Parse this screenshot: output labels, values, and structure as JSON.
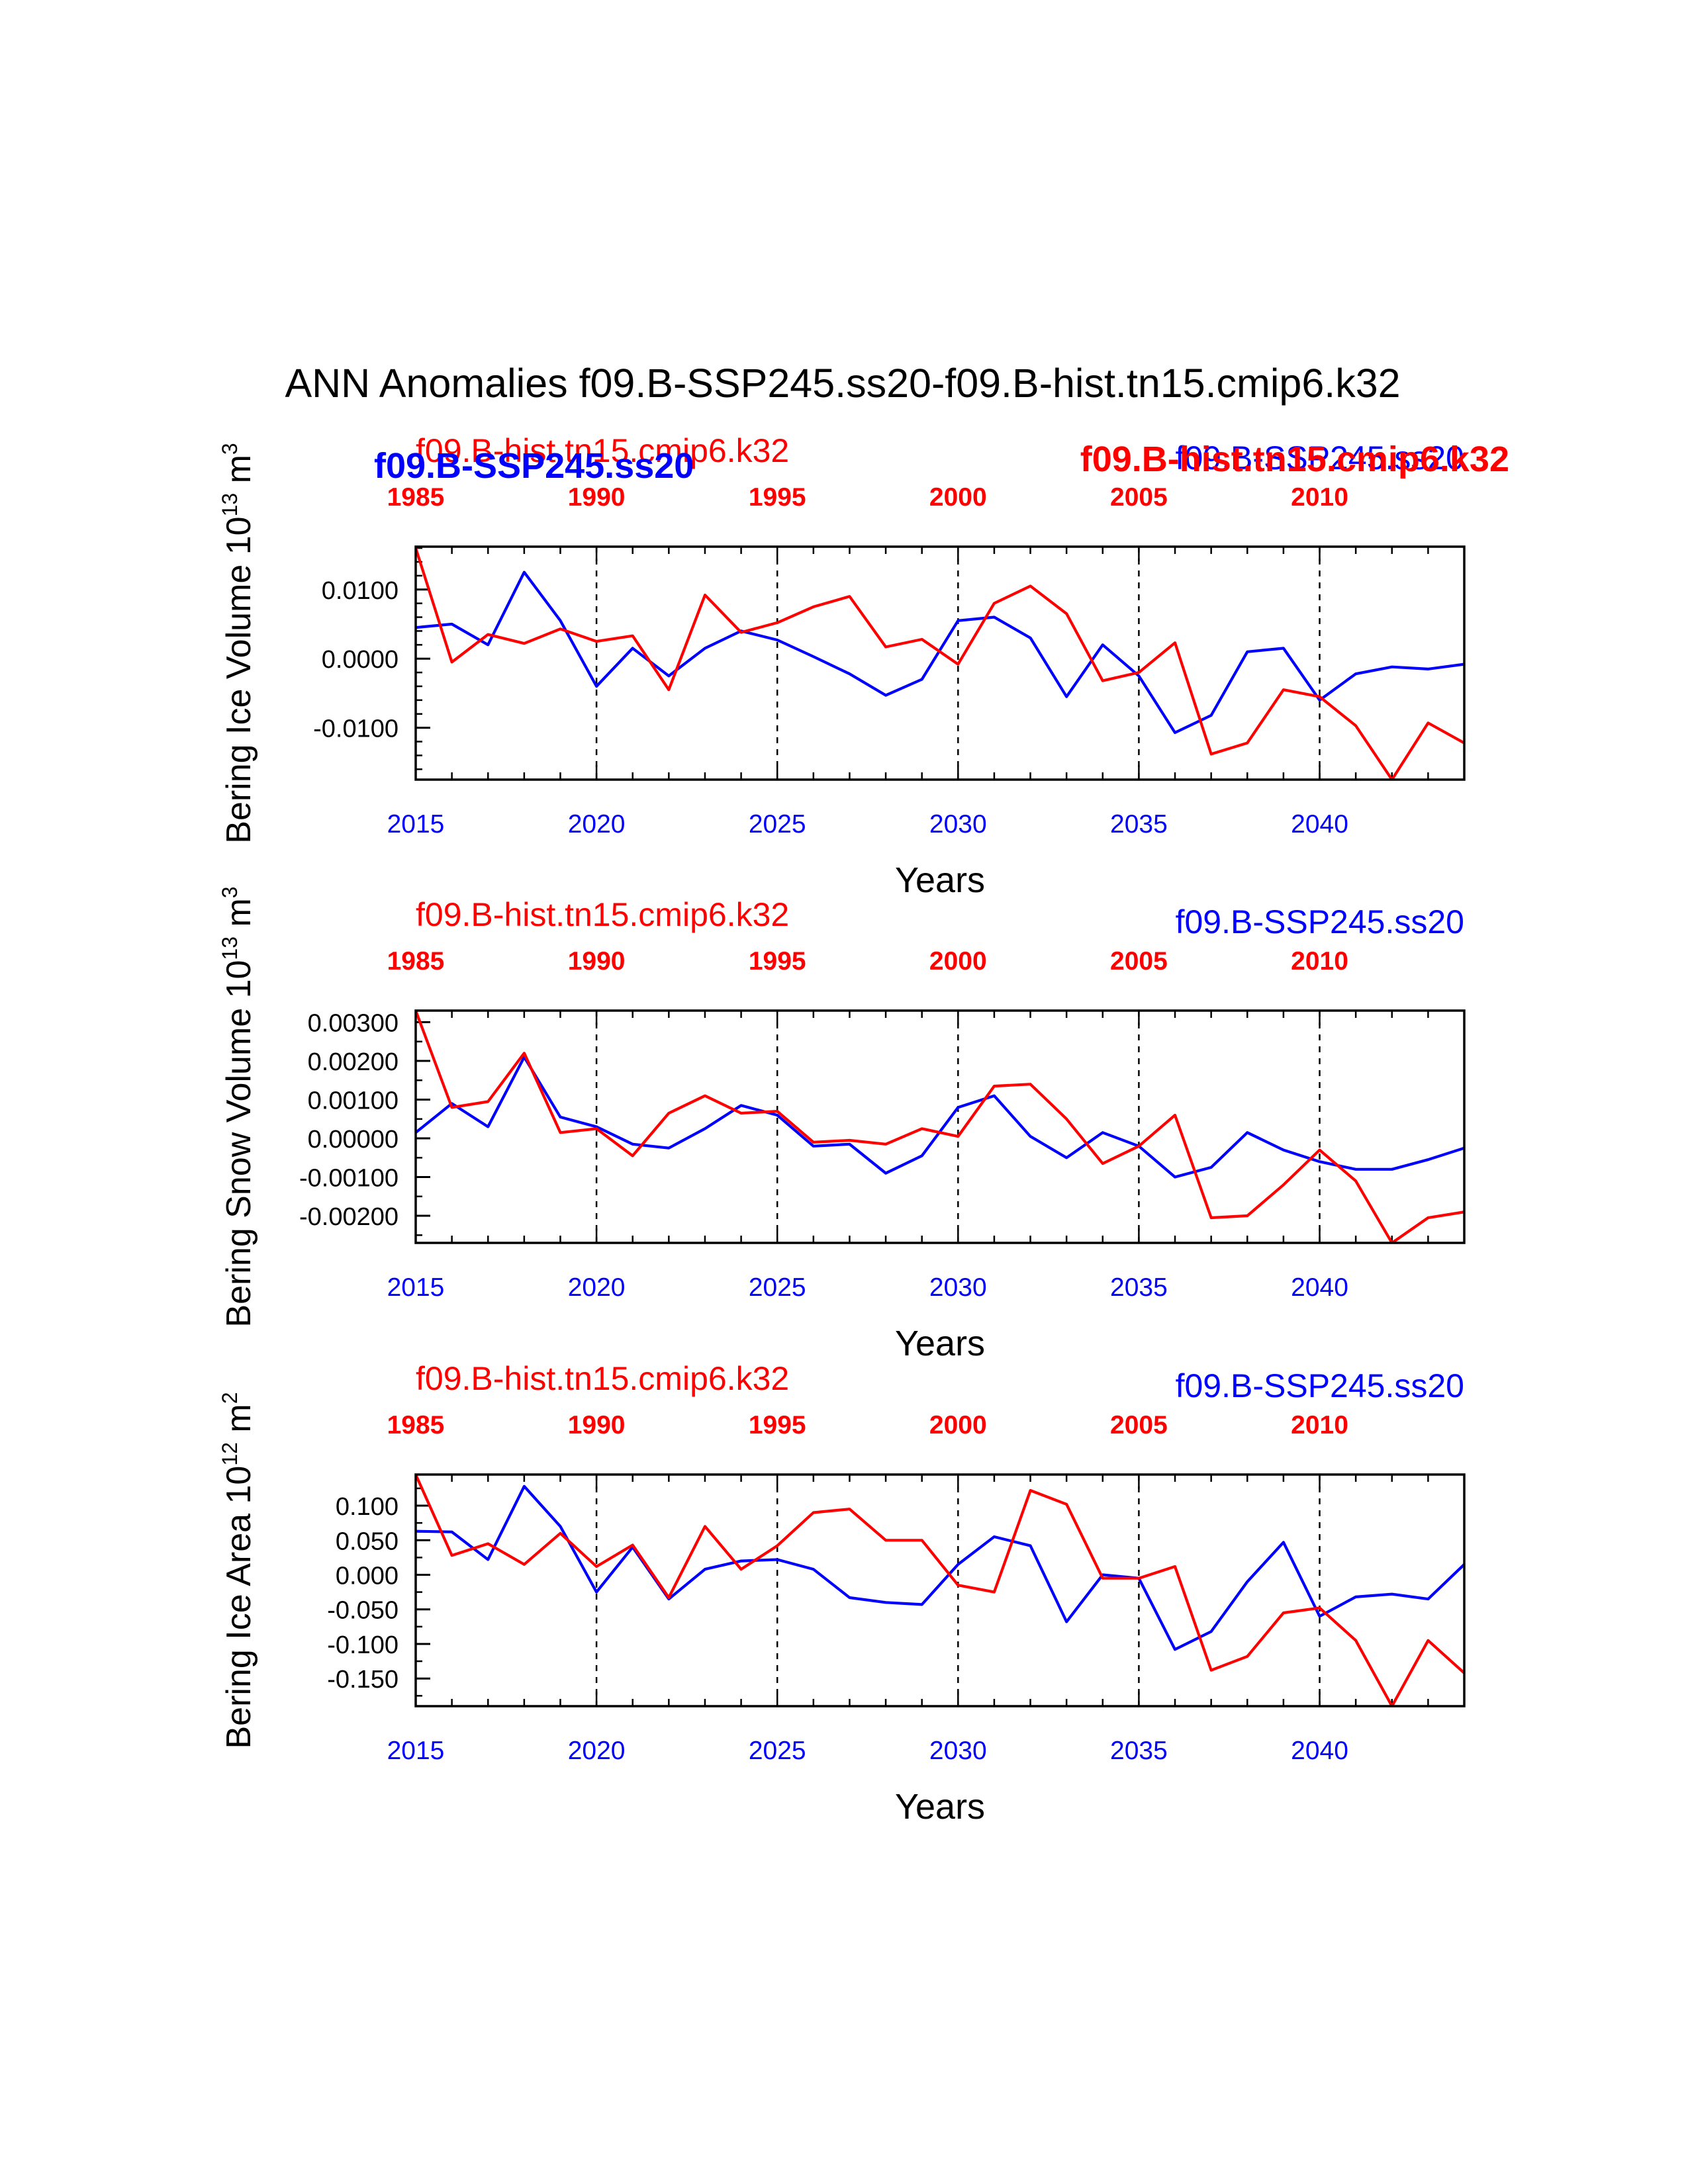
{
  "title": "ANN Anomalies f09.B-SSP245.ss20-f09.B-hist.tn15.cmip6.k32",
  "colors": {
    "ssp": "#0000ff",
    "hist": "#ff0000",
    "axis": "#000000",
    "grid": "#000000"
  },
  "overlay_labels": {
    "blue_bold_left": "f09.B-SSP245.ss20",
    "red_bold_right": "f09.B-hist.tn15.cmip6.k32"
  },
  "chart_data": [
    {
      "type": "line",
      "ylabel_main": "Bering Ice Volume 10",
      "ylabel_exp": "13",
      "ylabel_unit": " m",
      "ylabel_unit_exp": "3",
      "xlabel": "Years",
      "left_label": "f09.B-hist.tn15.cmip6.k32",
      "right_label": "f09.B-SSP245.ss20",
      "xlim": [
        2015,
        2044
      ],
      "ylim": [
        -0.0175,
        0.0162
      ],
      "yticks": [
        -0.01,
        0.0,
        0.01
      ],
      "ytick_labels": [
        "-0.0100",
        "0.0000",
        "0.0100"
      ],
      "yminor_step": 0.002,
      "bottom_ticks": [
        "2015",
        "2020",
        "2025",
        "2030",
        "2035",
        "2040"
      ],
      "top_ticks": [
        "1985",
        "1990",
        "1995",
        "2000",
        "2005",
        "2010"
      ],
      "x": [
        2015,
        2016,
        2017,
        2018,
        2019,
        2020,
        2021,
        2022,
        2023,
        2024,
        2025,
        2026,
        2027,
        2028,
        2029,
        2030,
        2031,
        2032,
        2033,
        2034,
        2035,
        2036,
        2037,
        2038,
        2039,
        2040,
        2041,
        2042,
        2043,
        2044
      ],
      "series": [
        {
          "name": "f09.B-SSP245.ss20",
          "color": "#0000ff",
          "values": [
            0.0045,
            0.005,
            0.002,
            0.0125,
            0.0055,
            -0.004,
            0.0015,
            -0.0025,
            0.0015,
            0.004,
            0.0027,
            0.0003,
            -0.0022,
            -0.0053,
            -0.003,
            0.0055,
            0.006,
            0.003,
            -0.0055,
            0.002,
            -0.0025,
            -0.0107,
            -0.0082,
            0.001,
            0.0015,
            -0.006,
            -0.0022,
            -0.0012,
            -0.0015,
            -0.0008
          ]
        },
        {
          "name": "f09.B-hist.tn15.cmip6.k32",
          "color": "#ff0000",
          "values": [
            0.016,
            -0.0005,
            0.0035,
            0.0022,
            0.0043,
            0.0025,
            0.0033,
            -0.0045,
            0.0092,
            0.0038,
            0.0052,
            0.0075,
            0.009,
            0.0017,
            0.0028,
            -0.0008,
            0.008,
            0.0105,
            0.0065,
            -0.0032,
            -0.002,
            0.0023,
            -0.0138,
            -0.0122,
            -0.0045,
            -0.0055,
            -0.0097,
            -0.0175,
            -0.0093,
            -0.0122
          ]
        }
      ]
    },
    {
      "type": "line",
      "ylabel_main": "Bering Snow Volume 10",
      "ylabel_exp": "13",
      "ylabel_unit": " m",
      "ylabel_unit_exp": "3",
      "xlabel": "Years",
      "left_label": "f09.B-hist.tn15.cmip6.k32",
      "right_label": "f09.B-SSP245.ss20",
      "xlim": [
        2015,
        2044
      ],
      "ylim": [
        -0.0027,
        0.0033
      ],
      "yticks": [
        -0.002,
        -0.001,
        0.0,
        0.001,
        0.002,
        0.003
      ],
      "ytick_labels": [
        "-0.00200",
        "-0.00100",
        "0.00000",
        "0.00100",
        "0.00200",
        "0.00300"
      ],
      "yminor_step": 0.0005,
      "bottom_ticks": [
        "2015",
        "2020",
        "2025",
        "2030",
        "2035",
        "2040"
      ],
      "top_ticks": [
        "1985",
        "1990",
        "1995",
        "2000",
        "2005",
        "2010"
      ],
      "x": [
        2015,
        2016,
        2017,
        2018,
        2019,
        2020,
        2021,
        2022,
        2023,
        2024,
        2025,
        2026,
        2027,
        2028,
        2029,
        2030,
        2031,
        2032,
        2033,
        2034,
        2035,
        2036,
        2037,
        2038,
        2039,
        2040,
        2041,
        2042,
        2043,
        2044
      ],
      "series": [
        {
          "name": "f09.B-SSP245.ss20",
          "color": "#0000ff",
          "values": [
            0.00015,
            0.0009,
            0.0003,
            0.0021,
            0.00055,
            0.0003,
            -0.00015,
            -0.00025,
            0.00025,
            0.00085,
            0.0006,
            -0.0002,
            -0.00015,
            -0.0009,
            -0.00045,
            0.0008,
            0.0011,
            5e-05,
            -0.0005,
            0.00015,
            -0.0002,
            -0.001,
            -0.00075,
            0.00015,
            -0.0003,
            -0.0006,
            -0.0008,
            -0.0008,
            -0.00055,
            -0.00025
          ]
        },
        {
          "name": "f09.B-hist.tn15.cmip6.k32",
          "color": "#ff0000",
          "values": [
            0.0033,
            0.0008,
            0.00095,
            0.0022,
            0.00015,
            0.00025,
            -0.00045,
            0.00065,
            0.0011,
            0.00065,
            0.0007,
            -0.0001,
            -5e-05,
            -0.00015,
            0.00025,
            5e-05,
            0.00135,
            0.0014,
            0.0005,
            -0.00065,
            -0.0002,
            0.0006,
            -0.00205,
            -0.002,
            -0.0012,
            -0.0003,
            -0.0011,
            -0.0027,
            -0.00205,
            -0.0019
          ]
        }
      ]
    },
    {
      "type": "line",
      "ylabel_main": "Bering Ice Area 10",
      "ylabel_exp": "12",
      "ylabel_unit": " m",
      "ylabel_unit_exp": "2",
      "xlabel": "Years",
      "left_label": "f09.B-hist.tn15.cmip6.k32",
      "right_label": "f09.B-SSP245.ss20",
      "xlim": [
        2015,
        2044
      ],
      "ylim": [
        -0.19,
        0.145
      ],
      "yticks": [
        -0.15,
        -0.1,
        -0.05,
        0.0,
        0.05,
        0.1
      ],
      "ytick_labels": [
        "-0.150",
        "-0.100",
        "-0.050",
        "0.000",
        "0.050",
        "0.100"
      ],
      "yminor_step": 0.025,
      "bottom_ticks": [
        "2015",
        "2020",
        "2025",
        "2030",
        "2035",
        "2040"
      ],
      "top_ticks": [
        "1985",
        "1990",
        "1995",
        "2000",
        "2005",
        "2010"
      ],
      "x": [
        2015,
        2016,
        2017,
        2018,
        2019,
        2020,
        2021,
        2022,
        2023,
        2024,
        2025,
        2026,
        2027,
        2028,
        2029,
        2030,
        2031,
        2032,
        2033,
        2034,
        2035,
        2036,
        2037,
        2038,
        2039,
        2040,
        2041,
        2042,
        2043,
        2044
      ],
      "series": [
        {
          "name": "f09.B-SSP245.ss20",
          "color": "#0000ff",
          "values": [
            0.063,
            0.062,
            0.022,
            0.128,
            0.07,
            -0.025,
            0.04,
            -0.035,
            0.008,
            0.02,
            0.022,
            0.008,
            -0.033,
            -0.04,
            -0.043,
            0.015,
            0.055,
            0.042,
            -0.068,
            0.0,
            -0.005,
            -0.108,
            -0.082,
            -0.01,
            0.047,
            -0.06,
            -0.032,
            -0.028,
            -0.035,
            0.015
          ]
        },
        {
          "name": "f09.B-hist.tn15.cmip6.k32",
          "color": "#ff0000",
          "values": [
            0.145,
            0.028,
            0.045,
            0.015,
            0.06,
            0.012,
            0.043,
            -0.033,
            0.07,
            0.008,
            0.042,
            0.09,
            0.095,
            0.05,
            0.05,
            -0.015,
            -0.025,
            0.122,
            0.102,
            -0.005,
            -0.005,
            0.012,
            -0.138,
            -0.118,
            -0.055,
            -0.048,
            -0.095,
            -0.19,
            -0.095,
            -0.142
          ]
        }
      ]
    }
  ]
}
